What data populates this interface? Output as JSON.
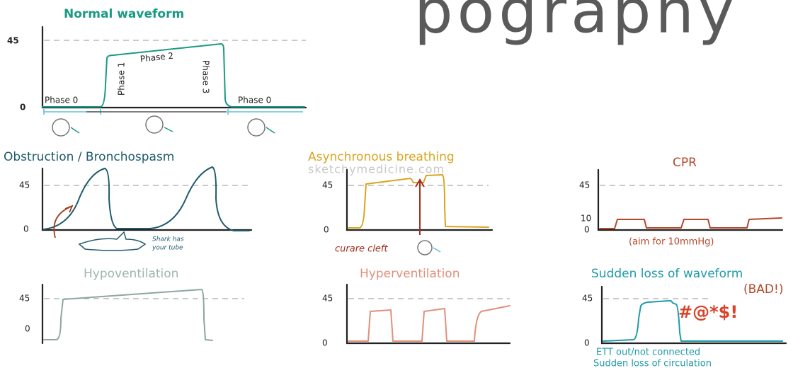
{
  "header": {
    "title": "pography"
  },
  "panels": [
    {
      "title": "Normal waveform",
      "axis": [
        45,
        0
      ],
      "phases": [
        "Phase 0",
        "Phase 1",
        "Phase 2",
        "Phase 3",
        "Phase 0"
      ]
    },
    {
      "title": "Obstruction / Bronchospasm",
      "axis": [
        45,
        0
      ],
      "notes": [
        "Shark has",
        "your tube"
      ]
    },
    {
      "title": "Asynchronous breathing",
      "watermark": "sketchymedicine.com",
      "axis": [
        45,
        0
      ],
      "notes": [
        "curare cleft"
      ]
    },
    {
      "title": "CPR",
      "axis": [
        45,
        10,
        0
      ],
      "notes": [
        "(aim for 10mmHg)"
      ]
    },
    {
      "title": "Hypoventilation",
      "axis": [
        45,
        0
      ]
    },
    {
      "title": "Hyperventilation",
      "axis": [
        45,
        0
      ]
    },
    {
      "title": "Sudden loss of waveform",
      "subtitle": "(BAD!)",
      "axis": [
        45,
        0
      ],
      "notes": [
        "#@*$!",
        "ETT out/not connected",
        "Sudden loss of circulation"
      ]
    }
  ]
}
